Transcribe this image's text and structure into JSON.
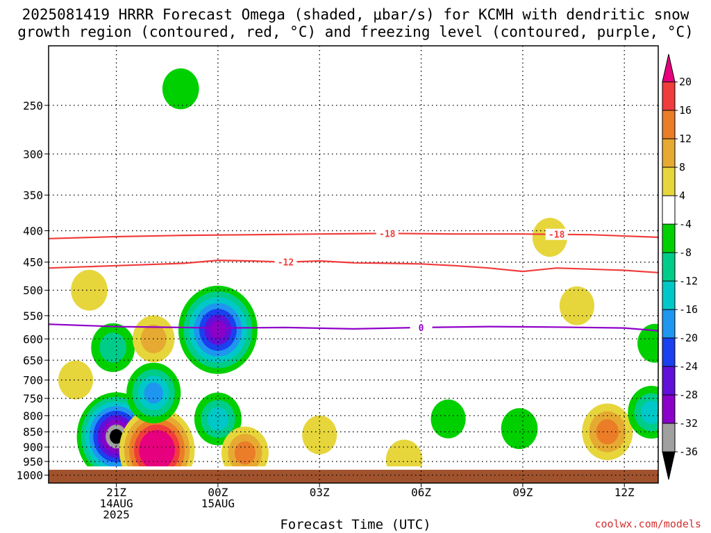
{
  "title": {
    "line1": "2025081419 HRRR Forecast Omega (shaded, μbar/s) for KCMH with dendritic snow",
    "line2": "growth region (contoured, red, °C) and freezing level (contoured, purple, °C)"
  },
  "credit": "coolwx.com/models",
  "chart_data": {
    "type": "heatmap",
    "title": "2025081419 HRRR Forecast Omega (shaded, μbar/s) for KCMH with dendritic snow growth region (contoured, red, °C) and freezing level (contoured, purple, °C)",
    "xlabel": "Forecast Time (UTC)",
    "ylabel": "",
    "x_range_hours_since_init": [
      0,
      18
    ],
    "y_axis": {
      "scale": "log",
      "reversed": true,
      "range": [
        200,
        1030
      ],
      "ticks": [
        250,
        300,
        350,
        400,
        450,
        500,
        550,
        600,
        650,
        700,
        750,
        800,
        850,
        900,
        950,
        1000
      ]
    },
    "x_ticks": [
      {
        "h": 2,
        "lines": [
          "21Z",
          "14AUG",
          "2025"
        ]
      },
      {
        "h": 5,
        "lines": [
          "00Z",
          "15AUG"
        ]
      },
      {
        "h": 8,
        "lines": [
          "03Z"
        ]
      },
      {
        "h": 11,
        "lines": [
          "06Z"
        ]
      },
      {
        "h": 14,
        "lines": [
          "09Z"
        ]
      },
      {
        "h": 17,
        "lines": [
          "12Z"
        ]
      }
    ],
    "grid": true,
    "ground_level_hpa": 980,
    "colorbar": {
      "levels": [
        -36,
        -32,
        -28,
        -24,
        -20,
        -16,
        -12,
        -8,
        -4,
        4,
        8,
        12,
        16,
        20
      ],
      "colors": [
        "#000000",
        "#a0a0a0",
        "#8a00c8",
        "#6010d8",
        "#1a40f0",
        "#1e96f0",
        "#00c8c8",
        "#00cc8a",
        "#00d000",
        "#ffffff",
        "#e6d63c",
        "#e6aa32",
        "#eb7d28",
        "#f03c3c",
        "#e6007d"
      ]
    },
    "contours": [
      {
        "label": "-18",
        "color": "#f03c3c",
        "label_positions_h": [
          10,
          15
        ],
        "points": [
          [
            0,
            412
          ],
          [
            2,
            409
          ],
          [
            4,
            407
          ],
          [
            6,
            406
          ],
          [
            8,
            405
          ],
          [
            10,
            404
          ],
          [
            12,
            405
          ],
          [
            14,
            405
          ],
          [
            16,
            406
          ],
          [
            18,
            410
          ]
        ]
      },
      {
        "label": "-12",
        "color": "#f03c3c",
        "label_positions_h": [
          7
        ],
        "points": [
          [
            0,
            460
          ],
          [
            2,
            456
          ],
          [
            4,
            452
          ],
          [
            5,
            447
          ],
          [
            6,
            448
          ],
          [
            7,
            450
          ],
          [
            8,
            448
          ],
          [
            9,
            451
          ],
          [
            10,
            452
          ],
          [
            11,
            453
          ],
          [
            12,
            456
          ],
          [
            13,
            460
          ],
          [
            14,
            466
          ],
          [
            15,
            460
          ],
          [
            16,
            462
          ],
          [
            17,
            464
          ],
          [
            18,
            468
          ]
        ]
      },
      {
        "label": "0",
        "color": "#8f00c8",
        "label_positions_h": [
          11
        ],
        "points": [
          [
            0,
            568
          ],
          [
            2,
            573
          ],
          [
            4,
            575
          ],
          [
            5,
            576
          ],
          [
            7,
            575
          ],
          [
            9,
            578
          ],
          [
            11,
            575
          ],
          [
            13,
            573
          ],
          [
            15,
            574
          ],
          [
            17,
            576
          ],
          [
            18,
            582
          ]
        ]
      }
    ],
    "omega_features": [
      {
        "center": [
          2,
          865
        ],
        "peak": -40,
        "note": "strong ascent"
      },
      {
        "center": [
          3.2,
          910
        ],
        "peak": 28,
        "note": "strong descent"
      },
      {
        "center": [
          5,
          580
        ],
        "peak": -30
      },
      {
        "center": [
          5,
          810
        ],
        "peak": -12
      },
      {
        "center": [
          3.9,
          235
        ],
        "peak": -6
      },
      {
        "center": [
          1.2,
          500
        ],
        "peak": 6
      },
      {
        "center": [
          0.8,
          700
        ],
        "peak": 5
      },
      {
        "center": [
          1.9,
          620
        ],
        "peak": -10
      },
      {
        "center": [
          3.1,
          600
        ],
        "peak": 9
      },
      {
        "center": [
          3.1,
          735
        ],
        "peak": -16
      },
      {
        "center": [
          5.8,
          920
        ],
        "peak": 12
      },
      {
        "center": [
          16.5,
          850
        ],
        "peak": 14
      },
      {
        "center": [
          15.6,
          530
        ],
        "peak": 5
      },
      {
        "center": [
          14.8,
          410
        ],
        "peak": 5
      },
      {
        "center": [
          8,
          860
        ],
        "peak": 5
      },
      {
        "center": [
          13.9,
          840
        ],
        "peak": -6
      },
      {
        "center": [
          11.8,
          810
        ],
        "peak": -5
      },
      {
        "center": [
          17.8,
          790
        ],
        "peak": -12
      },
      {
        "center": [
          17.9,
          610
        ],
        "peak": -5
      },
      {
        "center": [
          10.5,
          945
        ],
        "peak": 6
      }
    ]
  }
}
